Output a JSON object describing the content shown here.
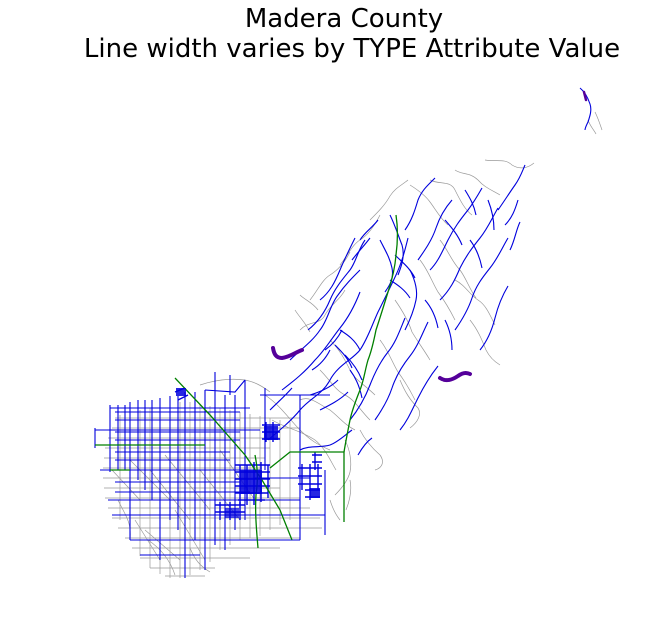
{
  "title": {
    "line1": "Madera County",
    "line2": "Line width varies by TYPE Attribute Value"
  },
  "colors": {
    "background": "#ffffff",
    "local_roads": "#999999",
    "major_roads": "#0000dd",
    "highway": "#008000",
    "thick_segments": "#55009a"
  },
  "layers": [
    "local-roads",
    "major-roads",
    "highway",
    "thick-segments"
  ]
}
